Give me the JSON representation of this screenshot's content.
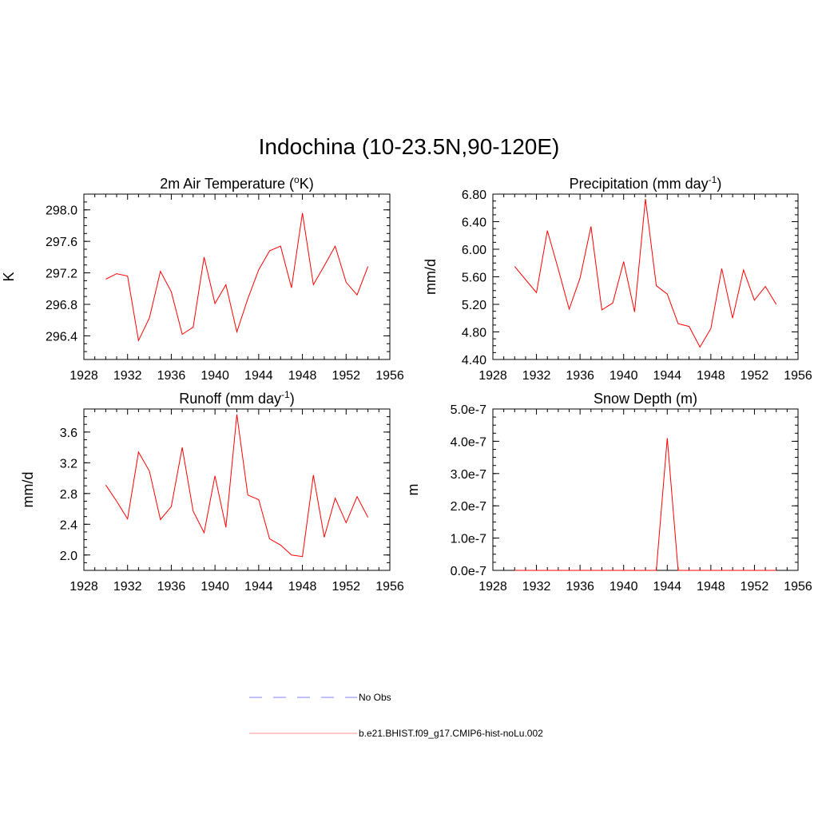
{
  "title": "Indochina (10-23.5N,90-120E)",
  "colors": {
    "series": "#ff0000",
    "obs": "#9999ff",
    "axis": "#000000"
  },
  "legend": {
    "entries": [
      {
        "label": "No Obs",
        "style": "dashed",
        "color": "#9999ff"
      },
      {
        "label": "b.e21.BHIST.f09_g17.CMIP6-hist-noLu.002",
        "style": "solid",
        "color": "#ffaaaa"
      }
    ]
  },
  "chart_data": [
    {
      "type": "line",
      "title": "2m Air Temperature (",
      "title_super": "o",
      "title_tail": "K)",
      "ylabel": "K",
      "xlim": [
        1928,
        1956
      ],
      "ylim": [
        296.1,
        298.2
      ],
      "xticks": [
        1928,
        1932,
        1936,
        1940,
        1944,
        1948,
        1952,
        1956
      ],
      "yticks": [
        "296.4",
        "296.8",
        "297.2",
        "297.6",
        "298.0"
      ],
      "x": [
        1930,
        1931,
        1932,
        1933,
        1934,
        1935,
        1936,
        1937,
        1938,
        1939,
        1940,
        1941,
        1942,
        1943,
        1944,
        1945,
        1946,
        1947,
        1948,
        1949,
        1950,
        1951,
        1952,
        1953,
        1954
      ],
      "series": [
        {
          "values": [
            297.12,
            297.19,
            297.16,
            296.34,
            296.63,
            297.22,
            296.96,
            296.42,
            296.51,
            297.4,
            296.81,
            297.05,
            296.45,
            296.87,
            297.24,
            297.48,
            297.54,
            297.01,
            297.96,
            297.05,
            297.29,
            297.54,
            297.08,
            296.92,
            297.28
          ]
        }
      ]
    },
    {
      "type": "line",
      "title": "Precipitation (mm day",
      "title_super": "-1",
      "title_tail": ")",
      "ylabel": "mm/d",
      "xlim": [
        1928,
        1956
      ],
      "ylim": [
        4.4,
        6.8
      ],
      "xticks": [
        1928,
        1932,
        1936,
        1940,
        1944,
        1948,
        1952,
        1956
      ],
      "yticks": [
        "4.40",
        "4.80",
        "5.20",
        "5.60",
        "6.00",
        "6.40",
        "6.80"
      ],
      "x": [
        1930,
        1931,
        1932,
        1933,
        1934,
        1935,
        1936,
        1937,
        1938,
        1939,
        1940,
        1941,
        1942,
        1943,
        1944,
        1945,
        1946,
        1947,
        1948,
        1949,
        1950,
        1951,
        1952,
        1953,
        1954
      ],
      "series": [
        {
          "values": [
            5.75,
            5.56,
            5.37,
            6.27,
            5.71,
            5.13,
            5.58,
            6.33,
            5.12,
            5.22,
            5.82,
            5.09,
            6.73,
            5.47,
            5.35,
            4.92,
            4.88,
            4.58,
            4.85,
            5.72,
            5.0,
            5.7,
            5.26,
            5.46,
            5.2
          ]
        }
      ]
    },
    {
      "type": "line",
      "title": "Runoff (mm day",
      "title_super": "-1",
      "title_tail": ")",
      "ylabel": "mm/d",
      "xlim": [
        1928,
        1956
      ],
      "ylim": [
        1.8,
        3.9
      ],
      "xticks": [
        1928,
        1932,
        1936,
        1940,
        1944,
        1948,
        1952,
        1956
      ],
      "yticks": [
        "2.0",
        "2.4",
        "2.8",
        "3.2",
        "3.6"
      ],
      "x": [
        1930,
        1931,
        1932,
        1933,
        1934,
        1935,
        1936,
        1937,
        1938,
        1939,
        1940,
        1941,
        1942,
        1943,
        1944,
        1945,
        1946,
        1947,
        1948,
        1949,
        1950,
        1951,
        1952,
        1953,
        1954
      ],
      "series": [
        {
          "values": [
            2.91,
            2.7,
            2.47,
            3.34,
            3.09,
            2.46,
            2.63,
            3.4,
            2.57,
            2.29,
            3.03,
            2.36,
            3.83,
            2.78,
            2.72,
            2.21,
            2.13,
            2.0,
            1.98,
            3.04,
            2.23,
            2.74,
            2.42,
            2.76,
            2.49
          ]
        }
      ]
    },
    {
      "type": "line",
      "title": "Snow Depth (m)",
      "title_super": "",
      "title_tail": "",
      "ylabel": "m",
      "xlim": [
        1928,
        1956
      ],
      "ylim": [
        0,
        5e-07
      ],
      "xticks": [
        1928,
        1932,
        1936,
        1940,
        1944,
        1948,
        1952,
        1956
      ],
      "yticks": [
        "0.0e-7",
        "1.0e-7",
        "2.0e-7",
        "3.0e-7",
        "4.0e-7",
        "5.0e-7"
      ],
      "x": [
        1930,
        1931,
        1932,
        1933,
        1934,
        1935,
        1936,
        1937,
        1938,
        1939,
        1940,
        1941,
        1942,
        1943,
        1944,
        1945,
        1946,
        1947,
        1948,
        1949,
        1950,
        1951,
        1952,
        1953,
        1954
      ],
      "series": [
        {
          "values": [
            0,
            0,
            0,
            0,
            0,
            0,
            0,
            0,
            0,
            0,
            0,
            0,
            0,
            0,
            4.1e-07,
            0,
            0,
            0,
            0,
            0,
            0,
            0,
            0,
            0,
            0
          ]
        }
      ]
    }
  ]
}
